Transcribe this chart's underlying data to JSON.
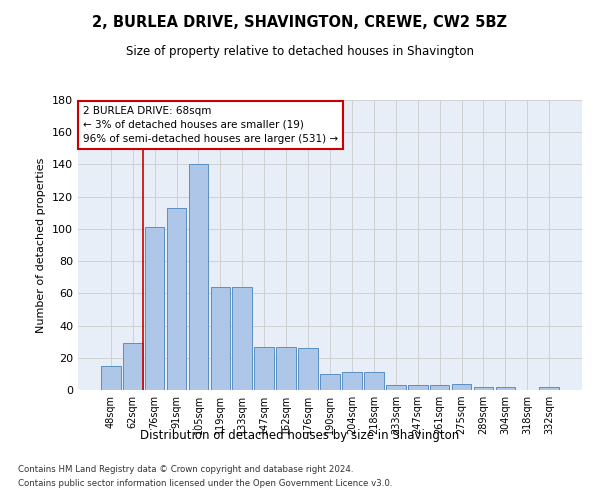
{
  "title": "2, BURLEA DRIVE, SHAVINGTON, CREWE, CW2 5BZ",
  "subtitle": "Size of property relative to detached houses in Shavington",
  "xlabel": "Distribution of detached houses by size in Shavington",
  "ylabel": "Number of detached properties",
  "categories": [
    "48sqm",
    "62sqm",
    "76sqm",
    "91sqm",
    "105sqm",
    "119sqm",
    "133sqm",
    "147sqm",
    "162sqm",
    "176sqm",
    "190sqm",
    "204sqm",
    "218sqm",
    "233sqm",
    "247sqm",
    "261sqm",
    "275sqm",
    "289sqm",
    "304sqm",
    "318sqm",
    "332sqm"
  ],
  "values": [
    15,
    29,
    101,
    113,
    140,
    64,
    64,
    27,
    27,
    26,
    10,
    11,
    11,
    3,
    3,
    3,
    4,
    2,
    2,
    0,
    2
  ],
  "bar_color": "#aec6e8",
  "bar_edge_color": "#5a8fc2",
  "grid_color": "#cccccc",
  "vline_color": "#cc0000",
  "vline_x": 1.45,
  "annotation_text": "2 BURLEA DRIVE: 68sqm\n← 3% of detached houses are smaller (19)\n96% of semi-detached houses are larger (531) →",
  "annotation_box_color": "#ffffff",
  "annotation_box_edge_color": "#cc0000",
  "ylim": [
    0,
    180
  ],
  "yticks": [
    0,
    20,
    40,
    60,
    80,
    100,
    120,
    140,
    160,
    180
  ],
  "footer1": "Contains HM Land Registry data © Crown copyright and database right 2024.",
  "footer2": "Contains public sector information licensed under the Open Government Licence v3.0.",
  "bg_color": "#e8eef8"
}
